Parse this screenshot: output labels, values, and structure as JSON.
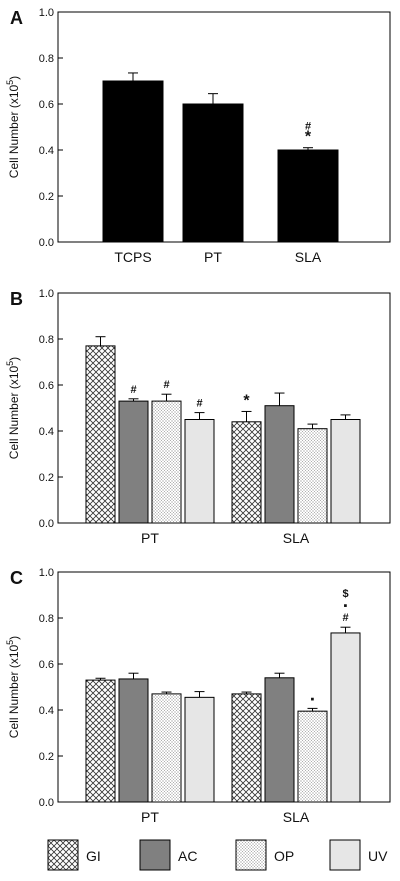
{
  "panels": [
    {
      "letter": "A",
      "type": "bar",
      "ylabel": "Cell Number (x10",
      "ylabel_sup": "5",
      "ylabel_close": ")",
      "ylim": [
        0,
        1.0
      ],
      "yticks": [
        "0.0",
        "0.2",
        "0.4",
        "0.6",
        "0.8",
        "1.0"
      ],
      "groups": [
        {
          "label": "TCPS",
          "bars": [
            {
              "series": "solid",
              "value": 0.7,
              "err": 0.035,
              "marks": []
            }
          ]
        },
        {
          "label": "PT",
          "bars": [
            {
              "series": "solid",
              "value": 0.6,
              "err": 0.045,
              "marks": []
            }
          ]
        },
        {
          "label": "SLA",
          "bars": [
            {
              "series": "solid",
              "value": 0.4,
              "err": 0.01,
              "marks": [
                "*",
                "#"
              ]
            }
          ]
        }
      ]
    },
    {
      "letter": "B",
      "type": "bar",
      "ylabel": "Cell Number (x10",
      "ylabel_sup": "5",
      "ylabel_close": ")",
      "ylim": [
        0,
        1.0
      ],
      "yticks": [
        "0.0",
        "0.2",
        "0.4",
        "0.6",
        "0.8",
        "1.0"
      ],
      "groups": [
        {
          "label": "PT",
          "bars": [
            {
              "series": "GI",
              "value": 0.77,
              "err": 0.04,
              "marks": []
            },
            {
              "series": "AC",
              "value": 0.53,
              "err": 0.01,
              "marks": [
                "#"
              ]
            },
            {
              "series": "OP",
              "value": 0.53,
              "err": 0.03,
              "marks": [
                "#"
              ]
            },
            {
              "series": "UV",
              "value": 0.45,
              "err": 0.03,
              "marks": [
                "#"
              ]
            }
          ]
        },
        {
          "label": "SLA",
          "bars": [
            {
              "series": "GI",
              "value": 0.44,
              "err": 0.045,
              "marks": [
                "*"
              ]
            },
            {
              "series": "AC",
              "value": 0.51,
              "err": 0.055,
              "marks": []
            },
            {
              "series": "OP",
              "value": 0.41,
              "err": 0.02,
              "marks": []
            },
            {
              "series": "UV",
              "value": 0.45,
              "err": 0.02,
              "marks": []
            }
          ]
        }
      ]
    },
    {
      "letter": "C",
      "type": "bar",
      "ylabel": "Cell Number (x10",
      "ylabel_sup": "5",
      "ylabel_close": ")",
      "ylim": [
        0,
        1.0
      ],
      "yticks": [
        "0.0",
        "0.2",
        "0.4",
        "0.6",
        "0.8",
        "1.0"
      ],
      "groups": [
        {
          "label": "PT",
          "bars": [
            {
              "series": "GI",
              "value": 0.53,
              "err": 0.008,
              "marks": []
            },
            {
              "series": "AC",
              "value": 0.535,
              "err": 0.025,
              "marks": []
            },
            {
              "series": "OP",
              "value": 0.47,
              "err": 0.008,
              "marks": []
            },
            {
              "series": "UV",
              "value": 0.455,
              "err": 0.025,
              "marks": []
            }
          ]
        },
        {
          "label": "SLA",
          "bars": [
            {
              "series": "GI",
              "value": 0.47,
              "err": 0.008,
              "marks": []
            },
            {
              "series": "AC",
              "value": 0.54,
              "err": 0.02,
              "marks": []
            },
            {
              "series": "OP",
              "value": 0.395,
              "err": 0.012,
              "marks": [
                "▪"
              ]
            },
            {
              "series": "UV",
              "value": 0.735,
              "err": 0.025,
              "marks": [
                "#",
                "▪",
                "$"
              ]
            }
          ]
        }
      ]
    }
  ],
  "legend": [
    {
      "key": "GI",
      "label": "GI",
      "pattern": "crosshatch"
    },
    {
      "key": "AC",
      "label": "AC",
      "pattern": "darkgray"
    },
    {
      "key": "OP",
      "label": "OP",
      "pattern": "dots"
    },
    {
      "key": "UV",
      "label": "UV",
      "pattern": "lightgray"
    }
  ],
  "colors": {
    "solid": "#000000",
    "AC": "#808080",
    "UV": "#e6e6e6",
    "axis": "#000000"
  },
  "chart_data": [
    {
      "type": "bar",
      "title": "A",
      "ylabel": "Cell Number (x10^5)",
      "ylim": [
        0,
        1.0
      ],
      "categories": [
        "TCPS",
        "PT",
        "SLA"
      ],
      "values": [
        0.7,
        0.6,
        0.4
      ],
      "errors": [
        0.035,
        0.045,
        0.01
      ],
      "annotations": [
        {
          "category": "SLA",
          "marks": [
            "*",
            "#"
          ]
        }
      ]
    },
    {
      "type": "bar",
      "title": "B",
      "ylabel": "Cell Number (x10^5)",
      "ylim": [
        0,
        1.0
      ],
      "categories": [
        "PT",
        "SLA"
      ],
      "series": [
        {
          "name": "GI",
          "values": [
            0.77,
            0.44
          ],
          "errors": [
            0.04,
            0.045
          ]
        },
        {
          "name": "AC",
          "values": [
            0.53,
            0.51
          ],
          "errors": [
            0.01,
            0.055
          ]
        },
        {
          "name": "OP",
          "values": [
            0.53,
            0.41
          ],
          "errors": [
            0.03,
            0.02
          ]
        },
        {
          "name": "UV",
          "values": [
            0.45,
            0.45
          ],
          "errors": [
            0.03,
            0.02
          ]
        }
      ]
    },
    {
      "type": "bar",
      "title": "C",
      "ylabel": "Cell Number (x10^5)",
      "ylim": [
        0,
        1.0
      ],
      "categories": [
        "PT",
        "SLA"
      ],
      "series": [
        {
          "name": "GI",
          "values": [
            0.53,
            0.47
          ],
          "errors": [
            0.008,
            0.008
          ]
        },
        {
          "name": "AC",
          "values": [
            0.535,
            0.54
          ],
          "errors": [
            0.025,
            0.02
          ]
        },
        {
          "name": "OP",
          "values": [
            0.47,
            0.395
          ],
          "errors": [
            0.008,
            0.012
          ]
        },
        {
          "name": "UV",
          "values": [
            0.455,
            0.735
          ],
          "errors": [
            0.025,
            0.025
          ]
        }
      ]
    }
  ]
}
